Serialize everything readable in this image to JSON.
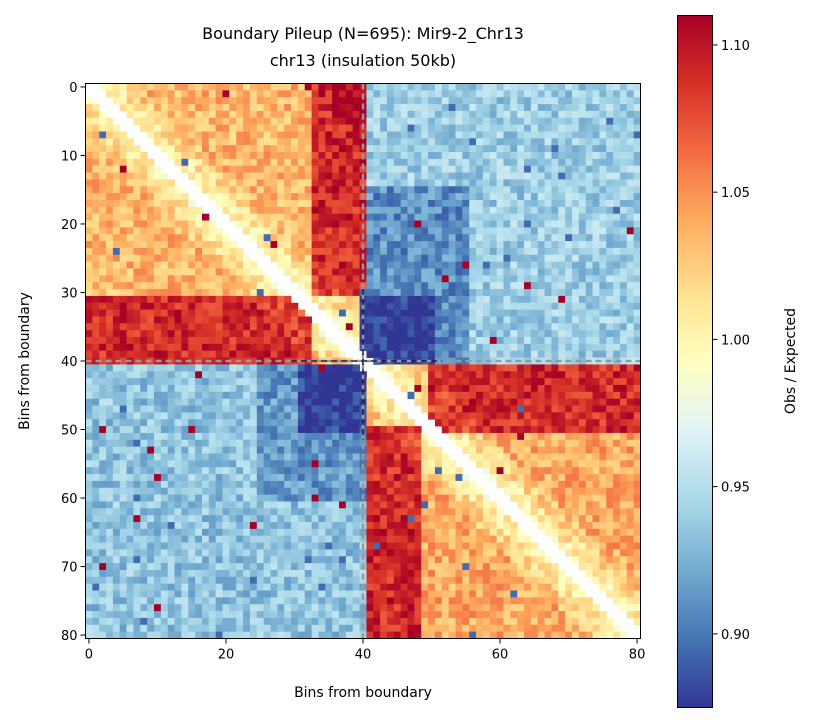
{
  "chart_data": {
    "type": "heatmap",
    "title": "Boundary Pileup (N=695): Mir9-2_Chr13",
    "subtitle": "chr13 (insulation 50kb)",
    "xlabel": "Bins from boundary",
    "ylabel": "Bins from boundary",
    "n_bins": 81,
    "boundary_bin": 40,
    "x_ticks": [
      0,
      20,
      40,
      60,
      80
    ],
    "y_ticks": [
      0,
      10,
      20,
      30,
      40,
      50,
      60,
      70,
      80
    ],
    "colormap": "RdYlBu_r",
    "vmin": 0.875,
    "vmax": 1.11,
    "colorbar": {
      "label": "Obs / Expected",
      "ticks": [
        0.9,
        0.95,
        1.0,
        1.05,
        1.1
      ],
      "tick_labels": [
        "0.90",
        "0.95",
        "1.00",
        "1.05",
        "1.10"
      ]
    },
    "diagonal": "masked (NaN)",
    "boundary_lines": "dashed at bin 40",
    "approx_region_means": [
      {
        "rows": [
          0,
          40
        ],
        "cols": [
          0,
          40
        ],
        "value": 1.035
      },
      {
        "rows": [
          41,
          80
        ],
        "cols": [
          41,
          80
        ],
        "value": 1.04
      },
      {
        "rows": [
          0,
          40
        ],
        "cols": [
          41,
          80
        ],
        "value": 0.94
      },
      {
        "rows": [
          41,
          80
        ],
        "cols": [
          0,
          40
        ],
        "value": 0.935
      },
      {
        "rows": [
          0,
          30
        ],
        "cols": [
          33,
          40
        ],
        "value": 1.09
      },
      {
        "rows": [
          0,
          5
        ],
        "cols": [
          36,
          40
        ],
        "value": 1.11
      },
      {
        "rows": [
          31,
          40
        ],
        "cols": [
          0,
          32
        ],
        "value": 1.09
      },
      {
        "rows": [
          15,
          40
        ],
        "cols": [
          41,
          55
        ],
        "value": 0.91
      },
      {
        "rows": [
          31,
          40
        ],
        "cols": [
          40,
          50
        ],
        "value": 0.875
      },
      {
        "rows": [
          41,
          60
        ],
        "cols": [
          25,
          40
        ],
        "value": 0.915
      },
      {
        "rows": [
          41,
          50
        ],
        "cols": [
          31,
          40
        ],
        "value": 0.875
      },
      {
        "rows": [
          41,
          50
        ],
        "cols": [
          50,
          80
        ],
        "value": 1.09
      },
      {
        "rows": [
          50,
          80
        ],
        "cols": [
          41,
          48
        ],
        "value": 1.09
      }
    ]
  }
}
